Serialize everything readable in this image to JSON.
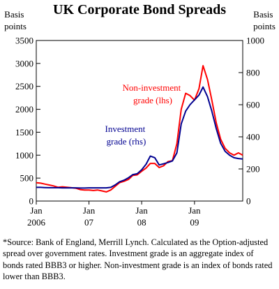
{
  "chart_data": {
    "type": "line",
    "title": "UK Corporate Bond Spreads",
    "left_axis_label": [
      "Basis",
      "points"
    ],
    "right_axis_label": [
      "Basis",
      "points"
    ],
    "y_left": {
      "min": 0,
      "max": 3500,
      "ticks": [
        "0",
        "500",
        "1000",
        "1500",
        "2000",
        "2500",
        "3000",
        "3500"
      ]
    },
    "y_right": {
      "min": 0,
      "max": 1000,
      "ticks": [
        "0",
        "200",
        "400",
        "600",
        "800",
        "1000"
      ]
    },
    "x": {
      "start": "2006-01",
      "end": "2009-12"
    },
    "x_ticks": [
      {
        "date": "2006-01",
        "label": [
          "Jan",
          "2006"
        ]
      },
      {
        "date": "2007-01",
        "label": [
          "Jan",
          "07"
        ]
      },
      {
        "date": "2008-01",
        "label": [
          "Jan",
          "08"
        ]
      },
      {
        "date": "2009-01",
        "label": [
          "Jan",
          "09"
        ]
      }
    ],
    "series": [
      {
        "name": "Non-investment grade (lhs)",
        "label_lines": [
          "Non-investment",
          "grade (lhs)"
        ],
        "axis": "left",
        "color": "#ff0000",
        "points": [
          [
            "2006-01-01",
            400
          ],
          [
            "2006-02-01",
            390
          ],
          [
            "2006-03-01",
            370
          ],
          [
            "2006-04-01",
            350
          ],
          [
            "2006-05-01",
            330
          ],
          [
            "2006-06-01",
            300
          ],
          [
            "2006-07-01",
            310
          ],
          [
            "2006-08-01",
            300
          ],
          [
            "2006-09-01",
            290
          ],
          [
            "2006-10-01",
            280
          ],
          [
            "2006-11-01",
            250
          ],
          [
            "2006-12-01",
            240
          ],
          [
            "2007-01-01",
            240
          ],
          [
            "2007-02-01",
            230
          ],
          [
            "2007-03-01",
            240
          ],
          [
            "2007-04-01",
            220
          ],
          [
            "2007-05-01",
            200
          ],
          [
            "2007-06-01",
            240
          ],
          [
            "2007-07-01",
            320
          ],
          [
            "2007-08-01",
            400
          ],
          [
            "2007-09-01",
            430
          ],
          [
            "2007-10-01",
            470
          ],
          [
            "2007-11-01",
            560
          ],
          [
            "2007-12-01",
            570
          ],
          [
            "2008-01-01",
            650
          ],
          [
            "2008-02-01",
            720
          ],
          [
            "2008-03-01",
            820
          ],
          [
            "2008-04-01",
            820
          ],
          [
            "2008-05-01",
            730
          ],
          [
            "2008-06-01",
            770
          ],
          [
            "2008-07-01",
            860
          ],
          [
            "2008-08-01",
            880
          ],
          [
            "2008-09-01",
            1250
          ],
          [
            "2008-10-01",
            2000
          ],
          [
            "2008-11-01",
            2350
          ],
          [
            "2008-12-01",
            2300
          ],
          [
            "2009-01-01",
            2200
          ],
          [
            "2009-02-01",
            2450
          ],
          [
            "2009-03-01",
            2950
          ],
          [
            "2009-04-01",
            2650
          ],
          [
            "2009-05-01",
            2200
          ],
          [
            "2009-06-01",
            1700
          ],
          [
            "2009-07-01",
            1350
          ],
          [
            "2009-08-01",
            1150
          ],
          [
            "2009-09-01",
            1050
          ],
          [
            "2009-10-01",
            1000
          ],
          [
            "2009-11-01",
            1050
          ],
          [
            "2009-12-01",
            1000
          ]
        ]
      },
      {
        "name": "Investment grade (rhs)",
        "label_lines": [
          "Investment",
          "grade (rhs)"
        ],
        "axis": "right",
        "color": "#000090",
        "points": [
          [
            "2006-01-01",
            85
          ],
          [
            "2006-02-01",
            85
          ],
          [
            "2006-03-01",
            84
          ],
          [
            "2006-04-01",
            83
          ],
          [
            "2006-05-01",
            83
          ],
          [
            "2006-06-01",
            83
          ],
          [
            "2006-07-01",
            82
          ],
          [
            "2006-08-01",
            82
          ],
          [
            "2006-09-01",
            82
          ],
          [
            "2006-10-01",
            82
          ],
          [
            "2006-11-01",
            81
          ],
          [
            "2006-12-01",
            81
          ],
          [
            "2007-01-01",
            82
          ],
          [
            "2007-02-01",
            82
          ],
          [
            "2007-03-01",
            82
          ],
          [
            "2007-04-01",
            82
          ],
          [
            "2007-05-01",
            82
          ],
          [
            "2007-06-01",
            85
          ],
          [
            "2007-07-01",
            100
          ],
          [
            "2007-08-01",
            120
          ],
          [
            "2007-09-01",
            130
          ],
          [
            "2007-10-01",
            145
          ],
          [
            "2007-11-01",
            165
          ],
          [
            "2007-12-01",
            170
          ],
          [
            "2008-01-01",
            195
          ],
          [
            "2008-02-01",
            230
          ],
          [
            "2008-03-01",
            280
          ],
          [
            "2008-04-01",
            270
          ],
          [
            "2008-05-01",
            225
          ],
          [
            "2008-06-01",
            232
          ],
          [
            "2008-07-01",
            240
          ],
          [
            "2008-08-01",
            250
          ],
          [
            "2008-09-01",
            300
          ],
          [
            "2008-10-01",
            480
          ],
          [
            "2008-11-01",
            560
          ],
          [
            "2008-12-01",
            600
          ],
          [
            "2009-01-01",
            630
          ],
          [
            "2009-02-01",
            660
          ],
          [
            "2009-03-01",
            710
          ],
          [
            "2009-04-01",
            650
          ],
          [
            "2009-05-01",
            560
          ],
          [
            "2009-06-01",
            450
          ],
          [
            "2009-07-01",
            360
          ],
          [
            "2009-08-01",
            310
          ],
          [
            "2009-09-01",
            285
          ],
          [
            "2009-10-01",
            270
          ],
          [
            "2009-11-01",
            265
          ],
          [
            "2009-12-01",
            262
          ]
        ]
      }
    ],
    "grid": false
  },
  "footnote": "*Source: Bank of England, Merrill Lynch. Calculated as the Option-adjusted spread over government rates. Investment grade is an aggregate index of bonds rated BBB3 or higher. Non-investment grade is an index of bonds rated lower than BBB3."
}
